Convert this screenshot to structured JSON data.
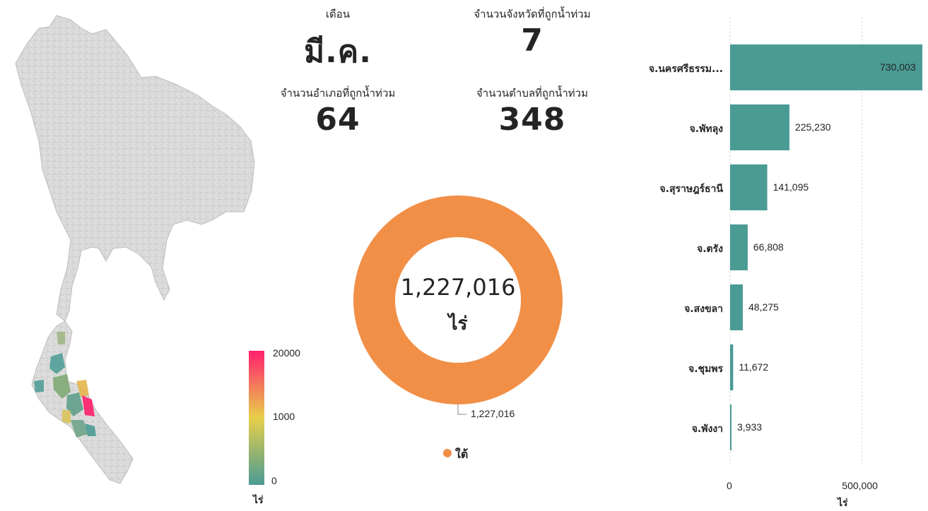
{
  "kpis": {
    "month_label": "เดือน",
    "month_value": "มี.ค.",
    "provinces_label": "จำนวนจังหวัดที่ถูกน้ำท่วม",
    "provinces_value": "7",
    "districts_label": "จำนวนอำเภอที่ถูกน้ำท่วม",
    "districts_value": "64",
    "subdistricts_label": "จำนวนตำบลที่ถูกน้ำท่วม",
    "subdistricts_value": "348"
  },
  "map": {
    "legend_ticks": [
      "20000",
      "1000",
      "0"
    ],
    "legend_unit": "ไร่",
    "colors": {
      "low": "#4a9b94",
      "mid": "#e8cf4a",
      "high": "#ff1f6e",
      "base": "#dcdcdc",
      "border": "#bdbdbd"
    }
  },
  "chart_data": [
    {
      "type": "pie",
      "variant": "donut",
      "categories": [
        "ใต้"
      ],
      "values": [
        1227016
      ],
      "center_value": "1,227,016",
      "center_unit": "ไร่",
      "slice_label": "1,227,016",
      "legend": {
        "placement": "bottom",
        "entries": [
          "ใต้"
        ]
      },
      "colors": [
        "#f18f47"
      ]
    },
    {
      "type": "bar",
      "orientation": "horizontal",
      "categories": [
        "จ.นครศรีธรรม...",
        "จ.พัทลุง",
        "จ.สุราษฎร์ธานี",
        "จ.ตรัง",
        "จ.สงขลา",
        "จ.ชุมพร",
        "จ.พังงา"
      ],
      "values": [
        730003,
        225230,
        141095,
        66808,
        48275,
        11672,
        3933
      ],
      "value_labels": [
        "730,003",
        "225,230",
        "141,095",
        "66,808",
        "48,275",
        "11,672",
        "3,933"
      ],
      "xlim": [
        0,
        730003
      ],
      "xticks": [
        0,
        500000
      ],
      "xtick_labels": [
        "0",
        "500,000"
      ],
      "xlabel": "ไร่",
      "grid": true,
      "color": "#4a9b94"
    }
  ]
}
